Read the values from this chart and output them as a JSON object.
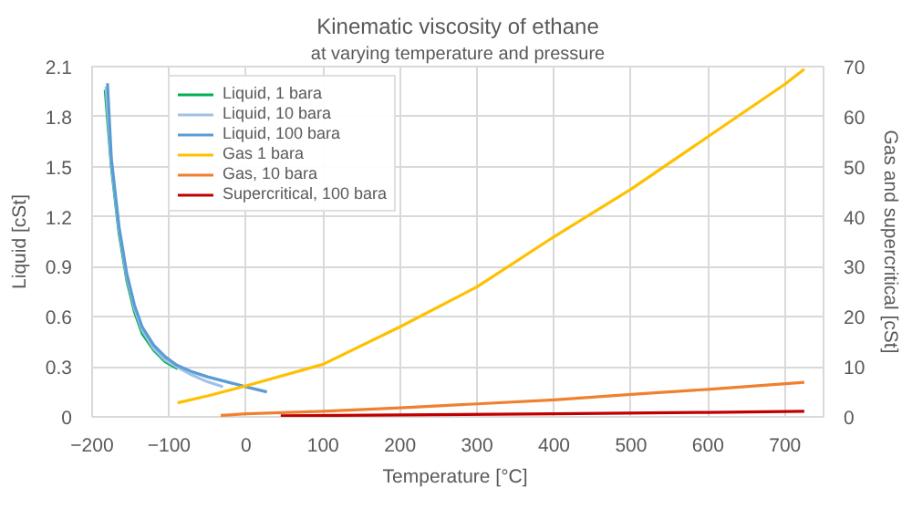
{
  "chart_data": {
    "type": "line",
    "title": "Kinematic viscosity of ethane",
    "subtitle": "at varying temperature and pressure",
    "xlabel": "Temperature  [°C]",
    "ylabel": "Liquid [cSt]",
    "y2label": "Gas and supercritical [cSt]",
    "xlim": [
      -200,
      750
    ],
    "xticks": [
      -200,
      -100,
      0,
      100,
      200,
      300,
      400,
      500,
      600,
      700
    ],
    "ylim": [
      0,
      2.1
    ],
    "yticks": [
      0,
      0.3,
      0.6,
      0.9,
      1.2,
      1.5,
      1.8,
      2.1
    ],
    "y2lim": [
      0,
      70
    ],
    "y2ticks": [
      0,
      10,
      20,
      30,
      40,
      50,
      60,
      70
    ],
    "grid": true,
    "legend": "top left",
    "line_style": "solid",
    "marker": "none",
    "series": [
      {
        "name": "Liquid, 1 bara",
        "color": "#00b050",
        "x": [
          -183,
          -175,
          -165,
          -155,
          -145,
          -135,
          -120,
          -105,
          -89
        ],
        "values": [
          1.96,
          1.5,
          1.1,
          0.82,
          0.63,
          0.5,
          0.4,
          0.33,
          0.29
        ]
      },
      {
        "name": "Liquid, 10 bara",
        "color": "#9dc3e6",
        "x": [
          -182,
          -175,
          -165,
          -155,
          -145,
          -135,
          -120,
          -105,
          -90,
          -70,
          -50,
          -30
        ],
        "values": [
          1.98,
          1.52,
          1.12,
          0.84,
          0.65,
          0.52,
          0.41,
          0.34,
          0.3,
          0.25,
          0.21,
          0.18
        ]
      },
      {
        "name": "Liquid, 100 bara",
        "color": "#5b9bd5",
        "x": [
          -180,
          -175,
          -165,
          -155,
          -145,
          -135,
          -120,
          -105,
          -90,
          -70,
          -50,
          -25,
          0,
          27
        ],
        "values": [
          2.0,
          1.55,
          1.14,
          0.86,
          0.67,
          0.54,
          0.43,
          0.36,
          0.31,
          0.27,
          0.24,
          0.21,
          0.18,
          0.15
        ]
      },
      {
        "name": "Gas 1 bara",
        "color": "#ffc000",
        "axis": "y2",
        "x": [
          -89,
          -50,
          0,
          100,
          200,
          300,
          400,
          500,
          600,
          700,
          725
        ],
        "values": [
          2.8,
          4.2,
          6.2,
          10.5,
          18,
          26,
          36,
          45.5,
          56,
          66.5,
          69.5
        ]
      },
      {
        "name": "Gas, 10 bara",
        "color": "#f08030",
        "axis": "y2",
        "x": [
          -33,
          0,
          100,
          200,
          300,
          400,
          500,
          600,
          725
        ],
        "values": [
          0.3,
          0.6,
          1.1,
          1.8,
          2.6,
          3.4,
          4.5,
          5.5,
          6.9
        ]
      },
      {
        "name": "Supercritical, 100 bara",
        "color": "#c00000",
        "axis": "y2",
        "x": [
          45,
          200,
          400,
          600,
          725
        ],
        "values": [
          0.2,
          0.4,
          0.6,
          0.9,
          1.1
        ]
      }
    ]
  }
}
